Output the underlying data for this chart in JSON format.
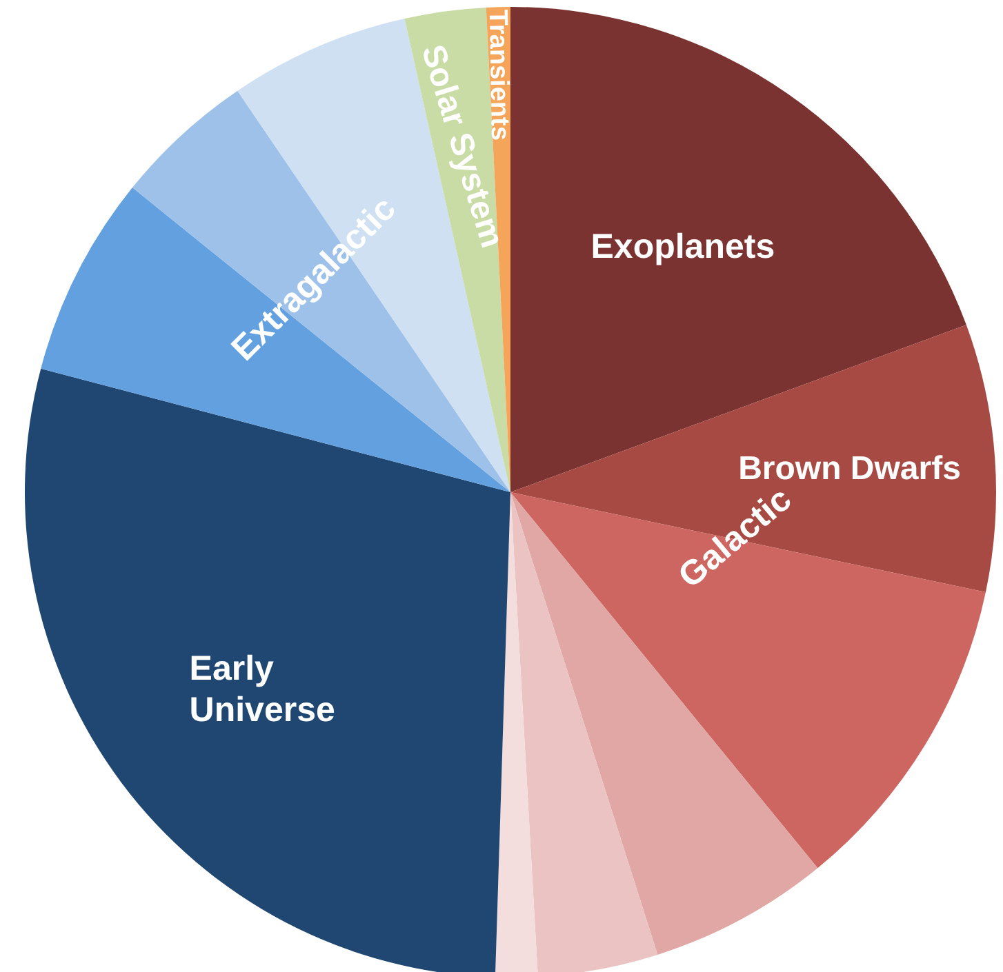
{
  "chart_data": {
    "type": "pie",
    "categories": [
      "Exoplanets",
      "Brown Dwarfs",
      "Galactic",
      null,
      null,
      null,
      "Early Universe",
      null,
      "Extragalactic",
      null,
      "Solar System",
      "Transients"
    ],
    "values": [
      19.4,
      8.9,
      10.8,
      6.0,
      4.0,
      1.4,
      28.6,
      6.7,
      4.7,
      6.0,
      2.7,
      0.8
    ],
    "colors": [
      "#7a3330",
      "#a84a44",
      "#cd6660",
      "#e0a7a5",
      "#ebc3c3",
      "#f3dedd",
      "#1f4771",
      "#62a0df",
      "#9ec1ea",
      "#cfe0f3",
      "#c9dca5",
      "#f5a55a"
    ]
  }
}
